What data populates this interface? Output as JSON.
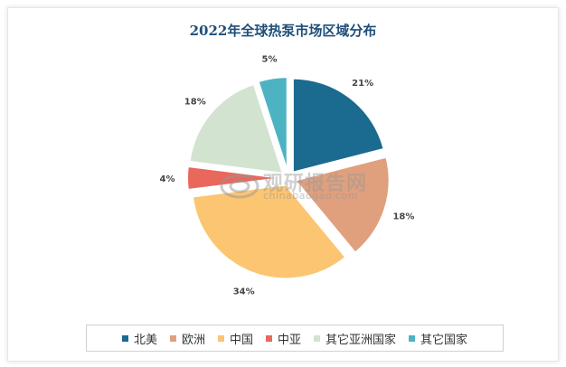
{
  "chart_data": {
    "type": "pie",
    "title": "2022年全球热泵市场区域分布",
    "categories": [
      "北美",
      "欧洲",
      "中国",
      "中亚",
      "其它亚洲国家",
      "其它国家"
    ],
    "values": [
      21,
      18,
      34,
      4,
      18,
      5
    ],
    "data_labels": [
      "21%",
      "18%",
      "34%",
      "4%",
      "18%",
      "5%"
    ],
    "colors": [
      "#1b6a8f",
      "#e0a07e",
      "#fcc572",
      "#e8685c",
      "#d2e3d0",
      "#4db3c3"
    ],
    "legend_position": "bottom",
    "exploded": true
  },
  "watermark": {
    "main": "观研报告网",
    "sub": "chinabaogao.com"
  }
}
